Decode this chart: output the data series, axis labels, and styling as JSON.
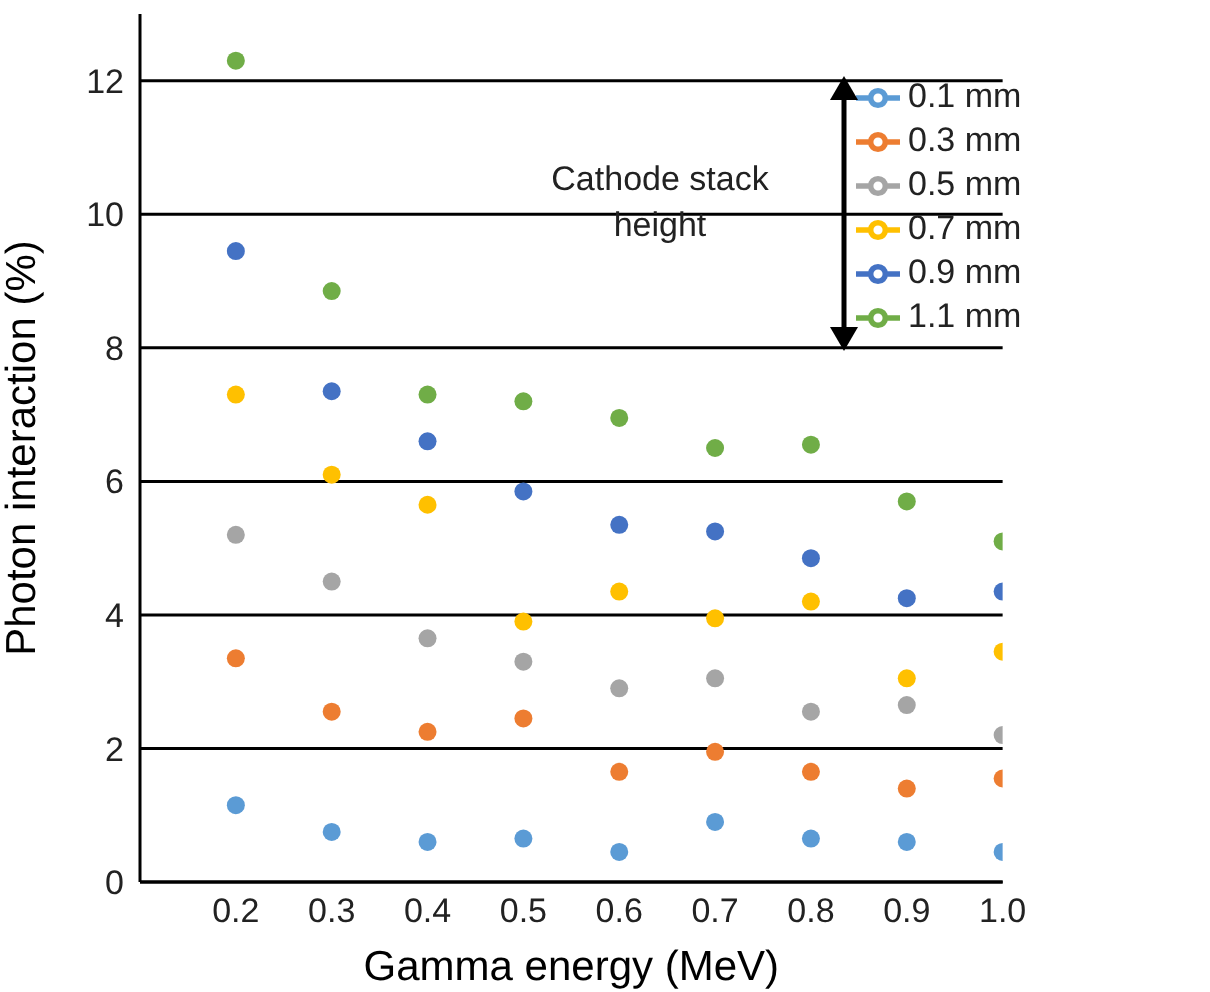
{
  "chart_data": {
    "type": "scatter",
    "xlabel": "Gamma energy (MeV)",
    "ylabel": "Photon interaction  (%)",
    "x": [
      0.2,
      0.3,
      0.4,
      0.5,
      0.6,
      0.7,
      0.8,
      0.9,
      1.0
    ],
    "series": [
      {
        "name": "0.1 mm",
        "color": "#5b9bd5",
        "values": [
          1.15,
          0.75,
          0.6,
          0.65,
          0.45,
          0.9,
          0.65,
          0.6,
          0.45
        ]
      },
      {
        "name": "0.3 mm",
        "color": "#ed7d31",
        "values": [
          3.35,
          2.55,
          2.25,
          2.45,
          1.65,
          1.95,
          1.65,
          1.4,
          1.55
        ]
      },
      {
        "name": "0.5 mm",
        "color": "#a5a5a5",
        "values": [
          5.2,
          4.5,
          3.65,
          3.3,
          2.9,
          3.05,
          2.55,
          2.65,
          2.2
        ]
      },
      {
        "name": "0.7 mm",
        "color": "#ffc000",
        "values": [
          7.3,
          6.1,
          5.65,
          3.9,
          4.35,
          3.95,
          4.2,
          3.05,
          3.45
        ]
      },
      {
        "name": "0.9 mm",
        "color": "#4472c4",
        "values": [
          9.45,
          7.35,
          6.6,
          5.85,
          5.35,
          5.25,
          4.85,
          4.25,
          4.35
        ]
      },
      {
        "name": "1.1 mm",
        "color": "#70ad47",
        "values": [
          12.3,
          8.85,
          7.3,
          7.2,
          6.95,
          6.5,
          6.55,
          5.7,
          5.1
        ]
      }
    ],
    "xlim": [
      0.1,
      1.0
    ],
    "xticks": [
      0.2,
      0.3,
      0.4,
      0.5,
      0.6,
      0.7,
      0.8,
      0.9,
      {
        "value": 1.0,
        "label": "1.0"
      }
    ],
    "ylim": [
      0,
      13
    ],
    "yticks": [
      0,
      2,
      4,
      6,
      8,
      10,
      12
    ],
    "grid": "y",
    "legend": "top right",
    "marker": "circle",
    "annotations": [
      "Cathode stack\nheight"
    ]
  }
}
